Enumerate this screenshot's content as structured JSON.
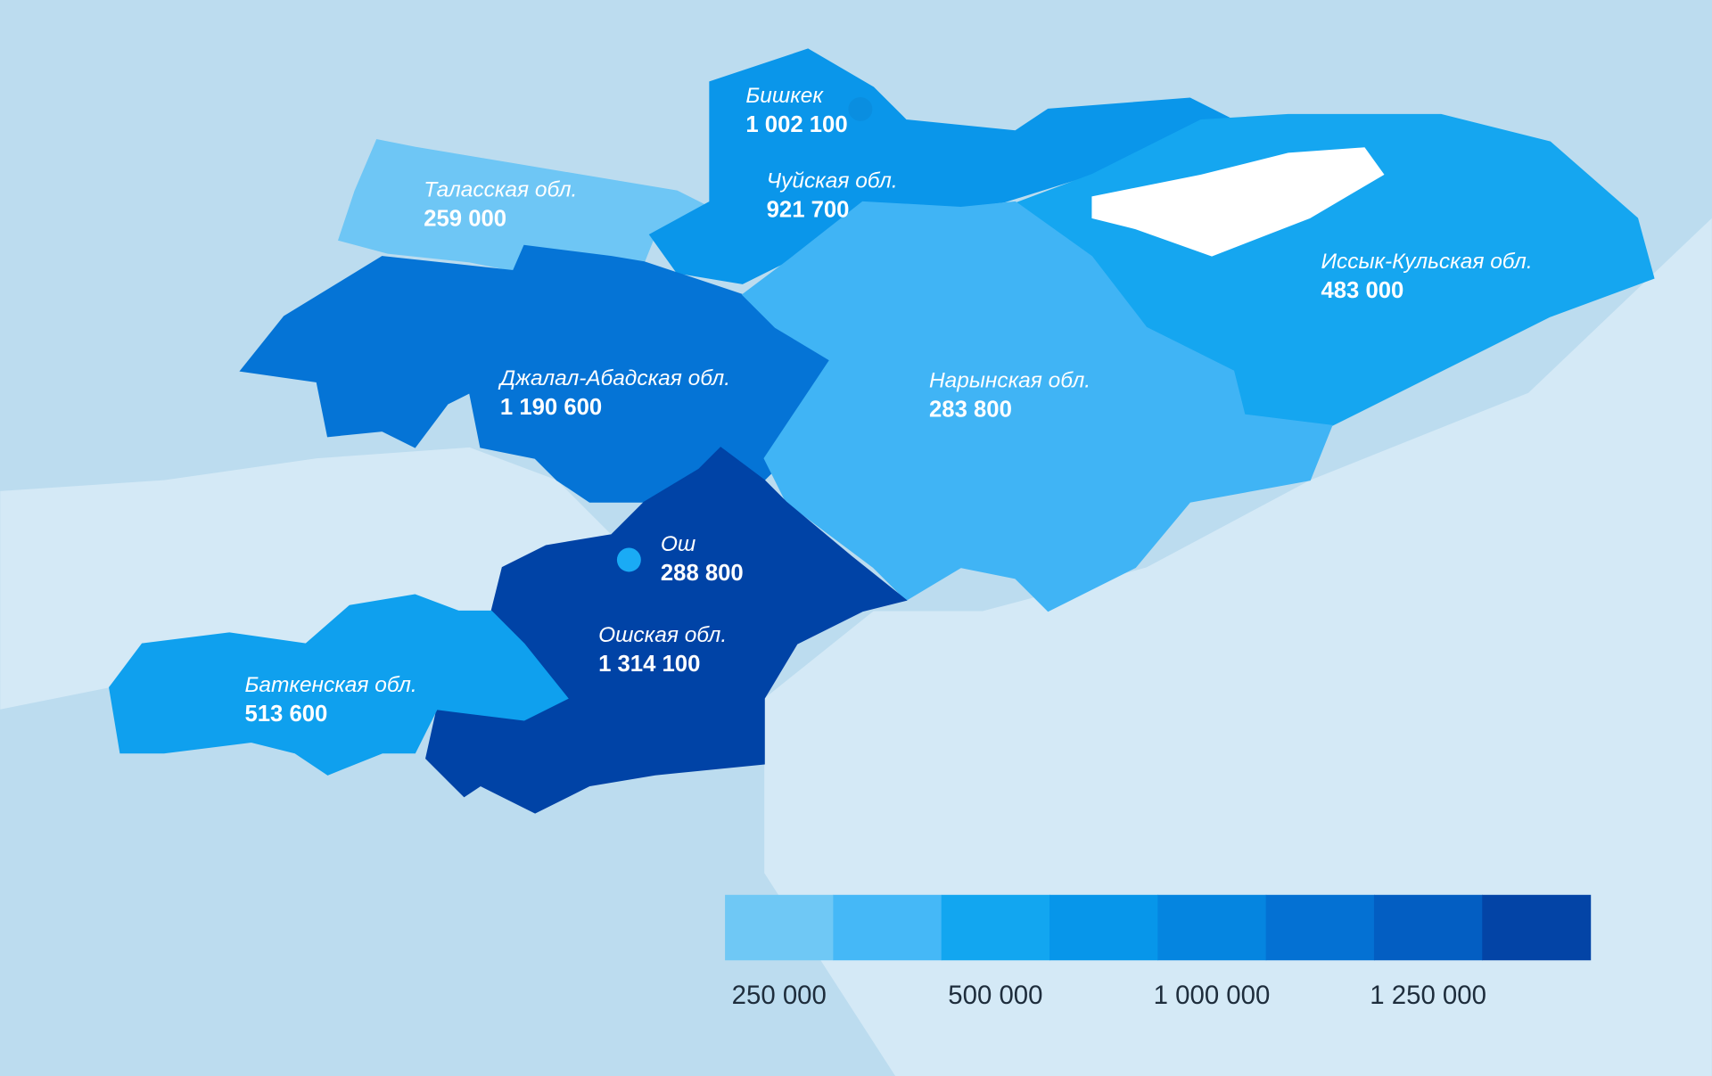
{
  "regions": [
    {
      "name": "Бишкек",
      "value": 1002100,
      "value_label": "1 002 100",
      "color": "#0a8ee0",
      "kind": "city"
    },
    {
      "name": "Таласская обл.",
      "value": 259000,
      "value_label": "259 000",
      "color": "#6ec6f5",
      "kind": "region"
    },
    {
      "name": "Чуйская обл.",
      "value": 921700,
      "value_label": "921 700",
      "color": "#0a96ea",
      "kind": "region"
    },
    {
      "name": "Иссык-Кульская обл.",
      "value": 483000,
      "value_label": "483 000",
      "color": "#15a6f0",
      "kind": "region"
    },
    {
      "name": "Джалал-Абадская обл.",
      "value": 1190600,
      "value_label": "1 190 600",
      "color": "#0574d6",
      "kind": "region"
    },
    {
      "name": "Нарынская обл.",
      "value": 283800,
      "value_label": "283 800",
      "color": "#40b4f5",
      "kind": "region"
    },
    {
      "name": "Ош",
      "value": 288800,
      "value_label": "288 800",
      "color": "#1aabf5",
      "kind": "city"
    },
    {
      "name": "Ошская обл.",
      "value": 1314100,
      "value_label": "1 314 100",
      "color": "#0043a6",
      "kind": "region"
    },
    {
      "name": "Баткенская обл.",
      "value": 513600,
      "value_label": "513 600",
      "color": "#0fa0ee",
      "kind": "region"
    }
  ],
  "legend": {
    "colors": [
      "#6fc8f5",
      "#45b8f7",
      "#12a6f0",
      "#0796ea",
      "#0585e0",
      "#0471d3",
      "#035ec2",
      "#0344a6"
    ],
    "ticks": [
      {
        "value": 250000,
        "label": "250 000"
      },
      {
        "value": 500000,
        "label": "500 000"
      },
      {
        "value": 1000000,
        "label": "1 000 000"
      },
      {
        "value": 1250000,
        "label": "1 250 000"
      }
    ]
  }
}
